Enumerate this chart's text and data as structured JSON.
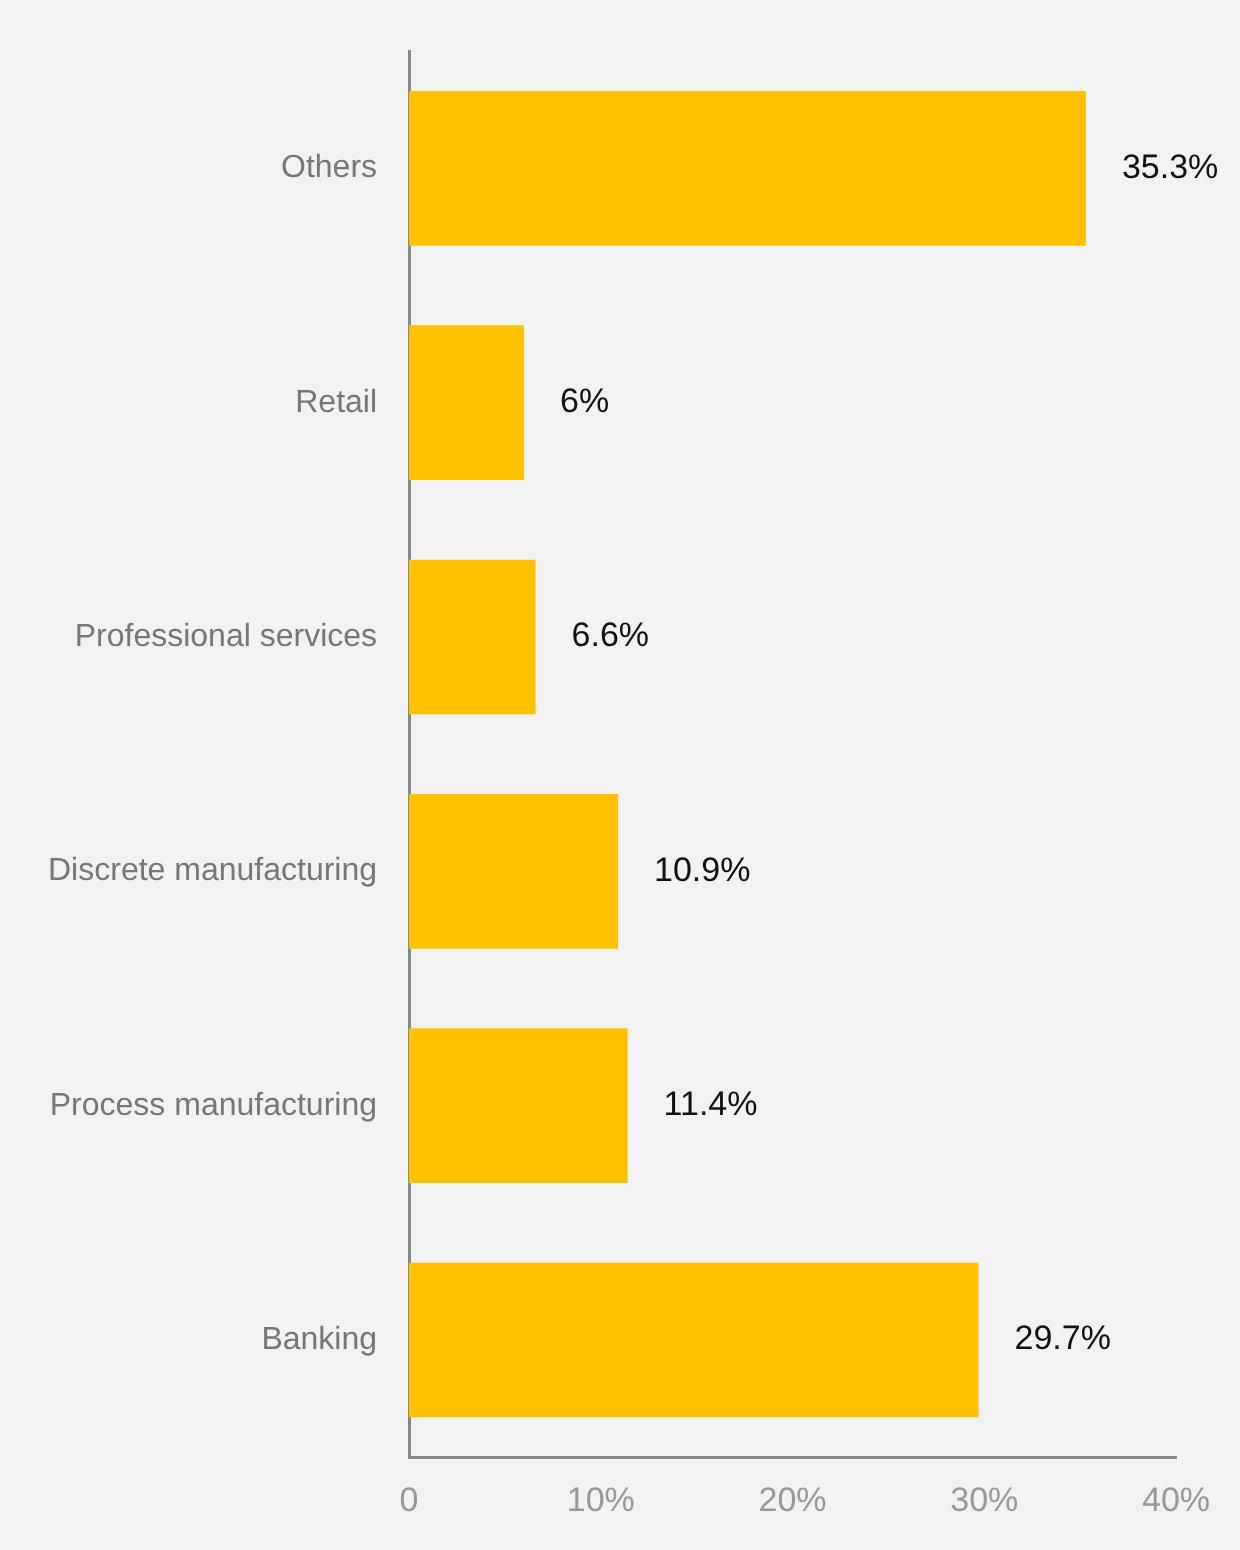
{
  "chart_data": {
    "type": "bar",
    "orientation": "horizontal",
    "categories": [
      "Others",
      "Retail",
      "Professional services",
      "Discrete manufacturing",
      "Process manufacturing",
      "Banking"
    ],
    "values": [
      35.3,
      6,
      6.6,
      10.9,
      11.4,
      29.7
    ],
    "value_labels": [
      "35.3%",
      "6%",
      "6.6%",
      "10.9%",
      "11.4%",
      "29.7%"
    ],
    "color": "#ffc000",
    "xlim": [
      0,
      40
    ],
    "xticks": [
      {
        "value": 0,
        "label": "0"
      },
      {
        "value": 10,
        "label": "10%"
      },
      {
        "value": 20,
        "label": "20%"
      },
      {
        "value": 30,
        "label": "30%"
      },
      {
        "value": 40,
        "label": "40%"
      }
    ],
    "grid": false,
    "legend": false
  }
}
